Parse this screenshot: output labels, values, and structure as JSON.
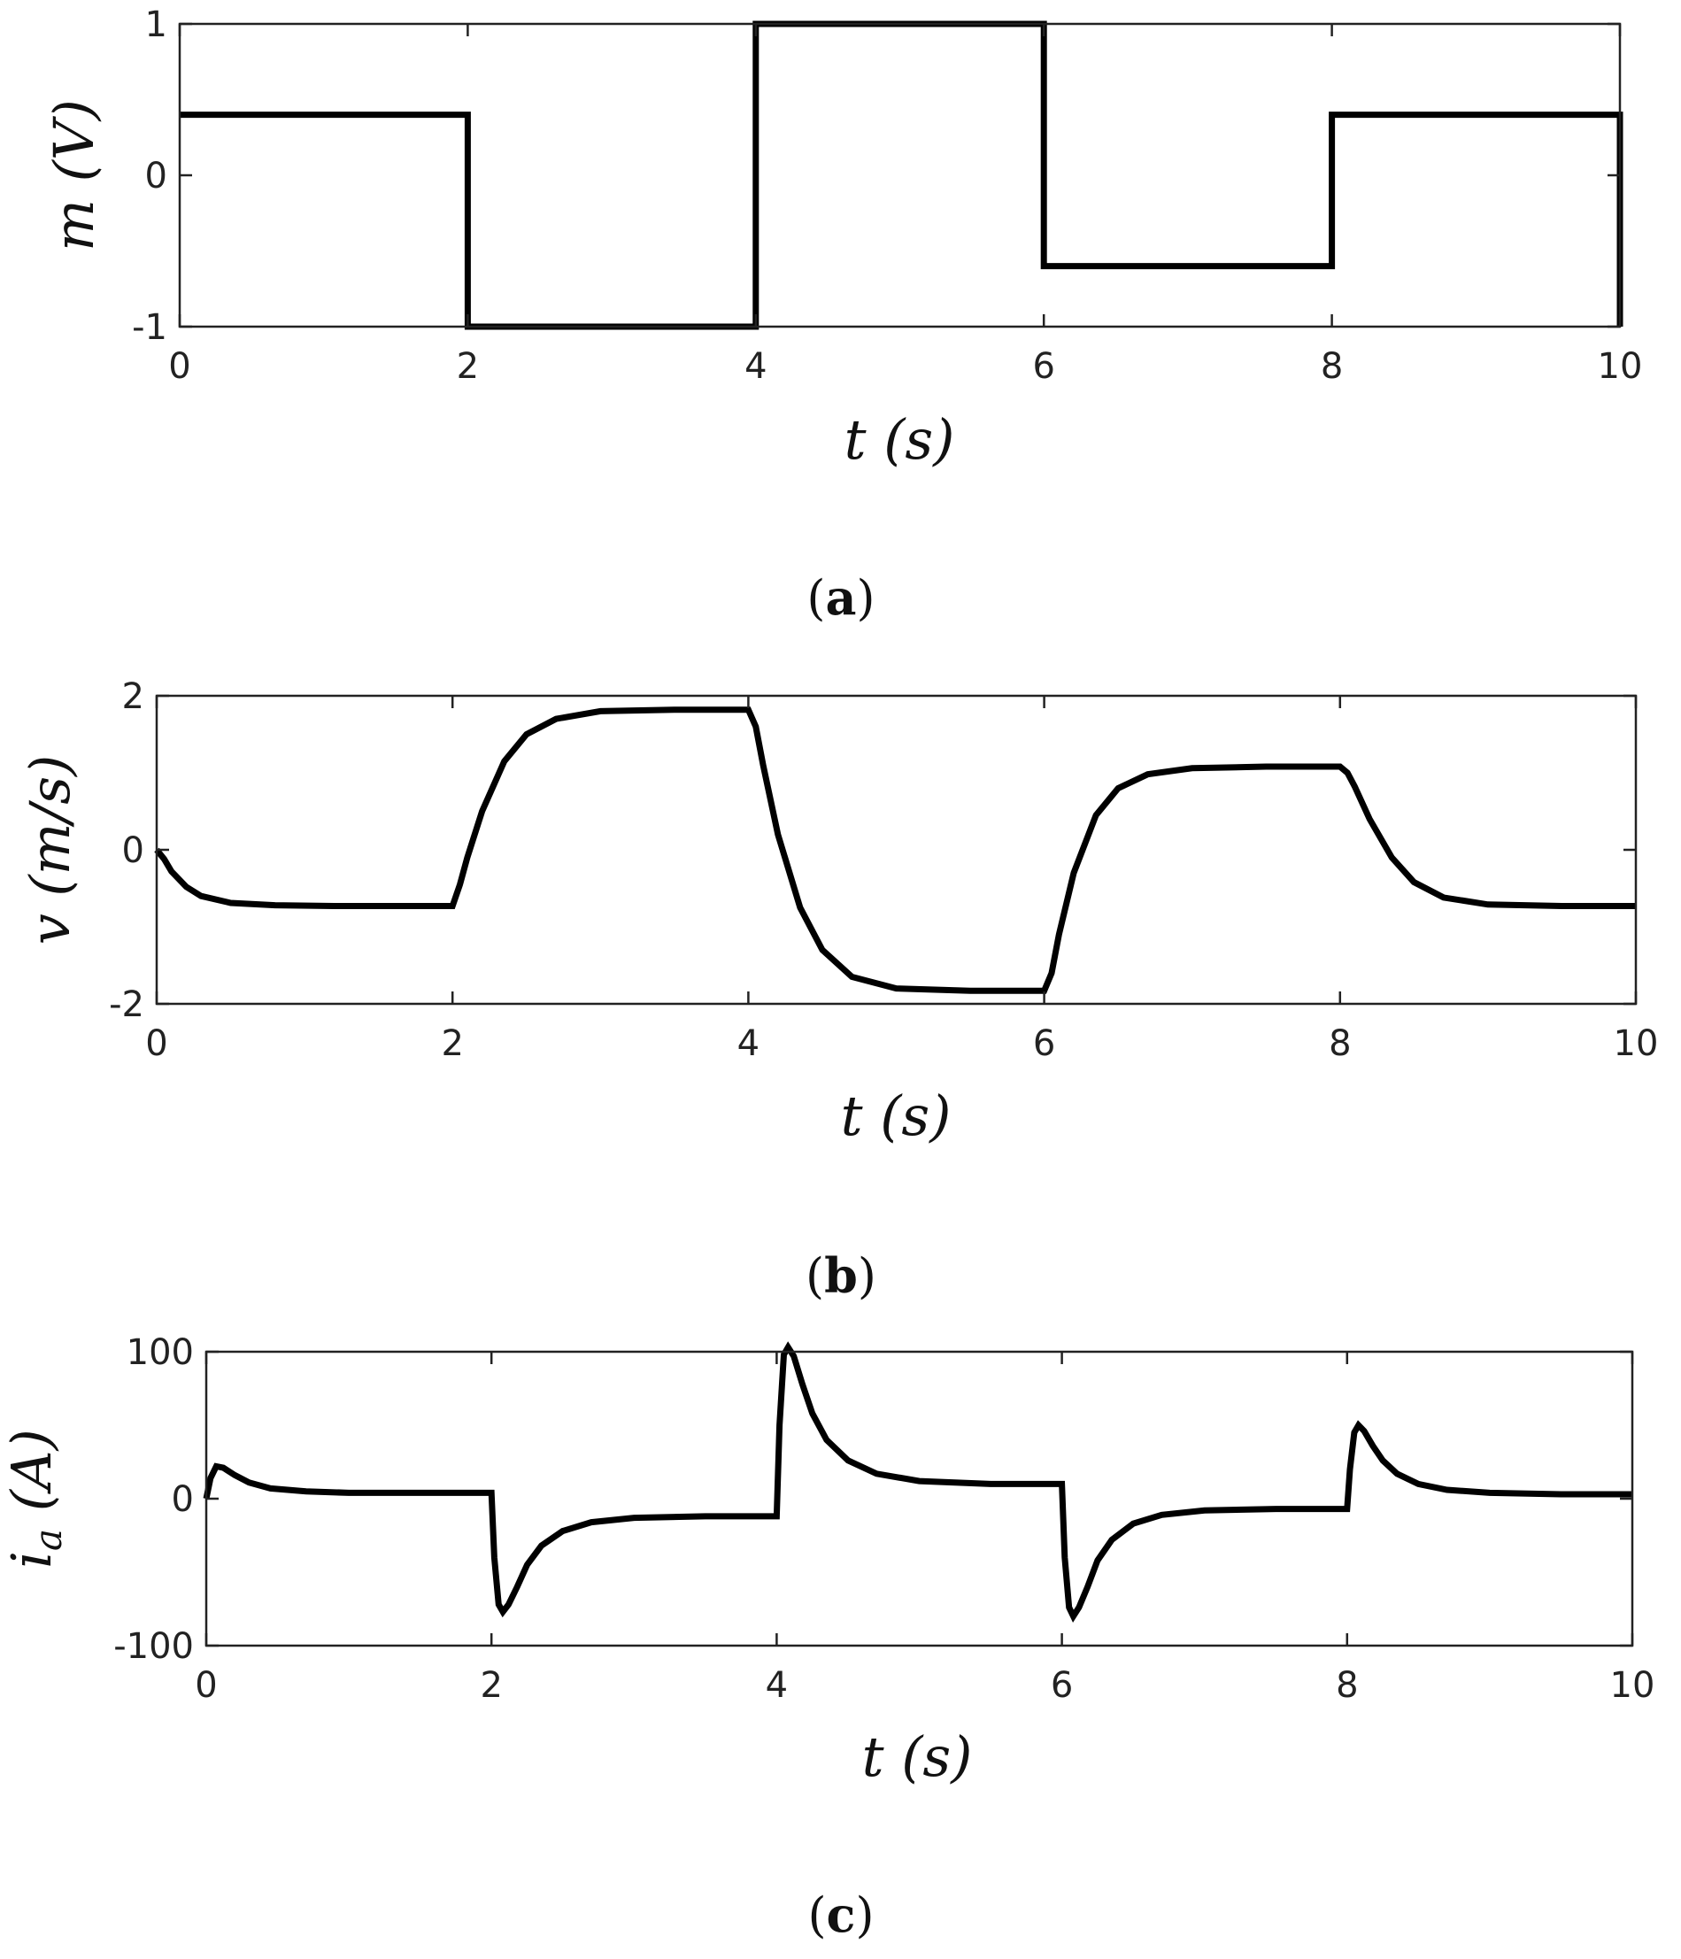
{
  "chart_data": [
    {
      "type": "line",
      "panel": "(a)",
      "caption_letter": "a",
      "ylabel": "m (V)",
      "xlabel": "t (s)",
      "xlim": [
        0,
        10
      ],
      "ylim": [
        -1,
        1
      ],
      "xticks": [
        0,
        2,
        4,
        6,
        8,
        10
      ],
      "yticks": [
        -1,
        0,
        1
      ],
      "xtick_labels": [
        "0",
        "2",
        "4",
        "6",
        "8",
        "10"
      ],
      "ytick_labels": [
        "-1",
        "0",
        "1"
      ],
      "grid": false,
      "series": [
        {
          "style": "step",
          "x": [
            0,
            2,
            2,
            4,
            4,
            6,
            6,
            8,
            8,
            10,
            10
          ],
          "y": [
            0.4,
            0.4,
            -1,
            -1,
            1,
            1,
            -0.6,
            -0.6,
            0.4,
            0.4,
            -1
          ]
        }
      ]
    },
    {
      "type": "line",
      "panel": "(b)",
      "caption_letter": "b",
      "ylabel": "v (m/s)",
      "xlabel": "t (s)",
      "xlim": [
        0,
        10
      ],
      "ylim": [
        -2,
        2
      ],
      "xticks": [
        0,
        2,
        4,
        6,
        8,
        10
      ],
      "yticks": [
        -2,
        0,
        2
      ],
      "xtick_labels": [
        "0",
        "2",
        "4",
        "6",
        "8",
        "10"
      ],
      "ytick_labels": [
        "-2",
        "0",
        "2"
      ],
      "grid": false,
      "series": [
        {
          "x": [
            0,
            0.05,
            0.1,
            0.2,
            0.3,
            0.5,
            0.8,
            1.2,
            2.0,
            2.05,
            2.1,
            2.2,
            2.35,
            2.5,
            2.7,
            3.0,
            3.5,
            4.0,
            4.05,
            4.1,
            4.2,
            4.35,
            4.5,
            4.7,
            5.0,
            5.5,
            6.0,
            6.05,
            6.1,
            6.2,
            6.35,
            6.5,
            6.7,
            7.0,
            7.5,
            8.0,
            8.05,
            8.1,
            8.2,
            8.35,
            8.5,
            8.7,
            9.0,
            9.5,
            10.0
          ],
          "y": [
            0,
            -0.12,
            -0.28,
            -0.48,
            -0.6,
            -0.69,
            -0.72,
            -0.73,
            -0.73,
            -0.45,
            -0.1,
            0.5,
            1.15,
            1.5,
            1.7,
            1.8,
            1.82,
            1.82,
            1.6,
            1.1,
            0.2,
            -0.75,
            -1.3,
            -1.65,
            -1.8,
            -1.83,
            -1.83,
            -1.6,
            -1.1,
            -0.3,
            0.45,
            0.8,
            0.98,
            1.06,
            1.08,
            1.08,
            1.0,
            0.82,
            0.4,
            -0.1,
            -0.42,
            -0.62,
            -0.71,
            -0.73,
            -0.73
          ]
        }
      ]
    },
    {
      "type": "line",
      "panel": "(c)",
      "caption_letter": "c",
      "ylabel": "i_a (A)",
      "xlabel": "t (s)",
      "xlim": [
        0,
        10
      ],
      "ylim": [
        -100,
        100
      ],
      "xticks": [
        0,
        2,
        4,
        6,
        8,
        10
      ],
      "yticks": [
        -100,
        0,
        100
      ],
      "xtick_labels": [
        "0",
        "2",
        "4",
        "6",
        "8",
        "10"
      ],
      "ytick_labels": [
        "-100",
        "0",
        "100"
      ],
      "grid": false,
      "series": [
        {
          "x": [
            0,
            0.03,
            0.07,
            0.12,
            0.2,
            0.3,
            0.45,
            0.7,
            1.0,
            2.0,
            2.02,
            2.05,
            2.08,
            2.12,
            2.18,
            2.25,
            2.35,
            2.5,
            2.7,
            3.0,
            3.5,
            4.0,
            4.02,
            4.05,
            4.08,
            4.12,
            4.18,
            4.25,
            4.35,
            4.5,
            4.7,
            5.0,
            5.5,
            6.0,
            6.02,
            6.05,
            6.08,
            6.12,
            6.18,
            6.25,
            6.35,
            6.5,
            6.7,
            7.0,
            7.5,
            8.0,
            8.02,
            8.05,
            8.08,
            8.12,
            8.18,
            8.25,
            8.35,
            8.5,
            8.7,
            9.0,
            9.5,
            10.0
          ],
          "y": [
            0,
            14,
            22,
            21,
            16,
            11,
            7,
            5,
            4,
            4,
            -40,
            -72,
            -77,
            -72,
            -60,
            -45,
            -32,
            -22,
            -16,
            -13,
            -12,
            -12,
            50,
            98,
            103,
            97,
            78,
            58,
            40,
            26,
            17,
            12,
            10,
            10,
            -40,
            -74,
            -80,
            -74,
            -60,
            -42,
            -28,
            -17,
            -11,
            -8,
            -7,
            -7,
            20,
            45,
            50,
            46,
            36,
            26,
            17,
            10,
            6,
            4,
            3,
            3
          ]
        }
      ]
    }
  ]
}
